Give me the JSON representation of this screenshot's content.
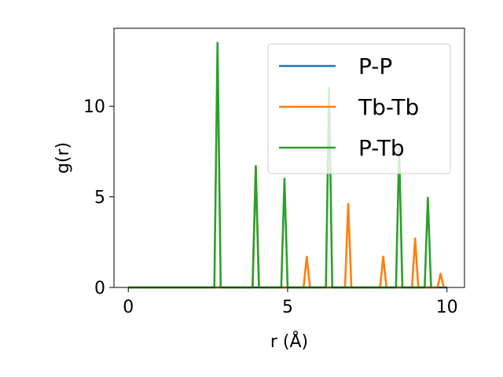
{
  "chart_data": {
    "type": "line",
    "xlabel": "r (Å)",
    "ylabel": "g(r)",
    "xlim": [
      -0.45,
      10.55
    ],
    "ylim": [
      0,
      14.3
    ],
    "xticks": [
      0,
      5,
      10
    ],
    "yticks": [
      0,
      5,
      10
    ],
    "grid": false,
    "legend_position": "top-right",
    "series": [
      {
        "name": "P-P",
        "color": "#1f77b4",
        "points": [
          [
            0,
            0
          ],
          [
            10,
            0
          ]
        ]
      },
      {
        "name": "Tb-Tb",
        "color": "#ff7f0e",
        "points": [
          [
            0,
            0
          ],
          [
            3.9,
            0
          ],
          [
            4.0,
            6.7
          ],
          [
            4.1,
            0
          ],
          [
            5.5,
            0
          ],
          [
            5.6,
            1.7
          ],
          [
            5.7,
            0
          ],
          [
            6.8,
            0
          ],
          [
            6.9,
            4.6
          ],
          [
            7.0,
            0
          ],
          [
            7.9,
            0
          ],
          [
            8.0,
            1.7
          ],
          [
            8.1,
            0
          ],
          [
            8.9,
            0
          ],
          [
            9.0,
            2.7
          ],
          [
            9.1,
            0
          ],
          [
            9.7,
            0
          ],
          [
            9.8,
            0.75
          ],
          [
            9.9,
            0
          ]
        ]
      },
      {
        "name": "P-Tb",
        "color": "#2ca02c",
        "points": [
          [
            0,
            0
          ],
          [
            2.7,
            0
          ],
          [
            2.8,
            13.5
          ],
          [
            2.9,
            0
          ],
          [
            3.9,
            0
          ],
          [
            4.0,
            6.7
          ],
          [
            4.1,
            0
          ],
          [
            4.8,
            0
          ],
          [
            4.9,
            6.0
          ],
          [
            5.0,
            0
          ],
          [
            6.2,
            0
          ],
          [
            6.3,
            11.0
          ],
          [
            6.4,
            0
          ],
          [
            8.4,
            0
          ],
          [
            8.5,
            7.7
          ],
          [
            8.6,
            0
          ],
          [
            9.3,
            0
          ],
          [
            9.4,
            4.95
          ],
          [
            9.5,
            0
          ]
        ]
      }
    ]
  }
}
